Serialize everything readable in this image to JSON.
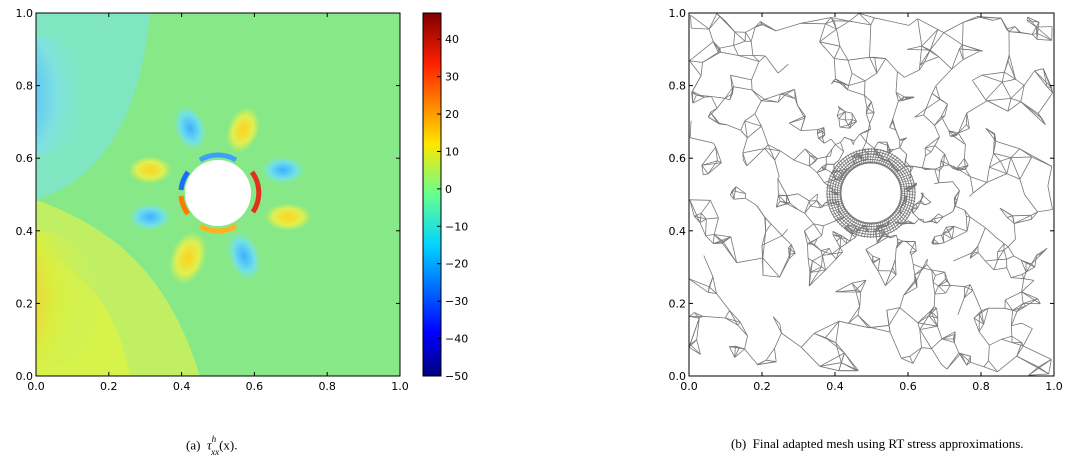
{
  "colors": {
    "background": "#86e886",
    "mesh_stroke": "#777777",
    "axis": "#000000"
  },
  "panel_a": {
    "x_ticks": [
      "0.0",
      "0.2",
      "0.4",
      "0.6",
      "0.8",
      "1.0"
    ],
    "y_ticks": [
      "0.0",
      "0.2",
      "0.4",
      "0.6",
      "0.8",
      "1.0"
    ],
    "colorbar_ticks": [
      "40",
      "30",
      "20",
      "10",
      "0",
      "−10",
      "−20",
      "−30",
      "−40",
      "−50"
    ],
    "colorbar_range": [
      -50,
      47
    ]
  },
  "panel_b": {
    "x_ticks": [
      "0.0",
      "0.2",
      "0.4",
      "0.6",
      "0.8",
      "1.0"
    ],
    "y_ticks": [
      "0.0",
      "0.2",
      "0.4",
      "0.6",
      "0.8",
      "1.0"
    ]
  },
  "captions": {
    "a_label": "(a)",
    "a_symbol": "τ",
    "a_sub": "xx",
    "a_sup": "h",
    "a_arg": "(x).",
    "b_label": "(b)",
    "b_text": "Final adapted mesh using RT stress approximations."
  }
}
